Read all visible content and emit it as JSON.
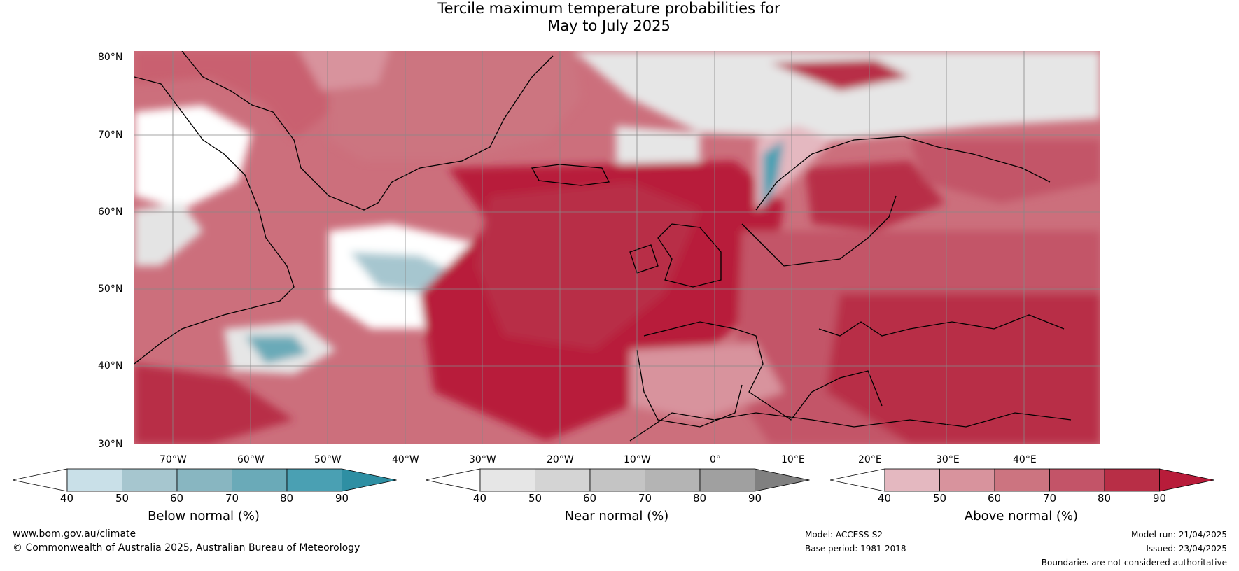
{
  "title_line1": "Tercile maximum temperature probabilities for",
  "title_line2": "May to July 2025",
  "lat_labels": [
    "80°N",
    "70°N",
    "60°N",
    "50°N",
    "40°N",
    "30°N"
  ],
  "lon_labels": [
    "70°W",
    "60°W",
    "50°W",
    "40°W",
    "30°W",
    "20°W",
    "10°W",
    "0°",
    "10°E",
    "20°E",
    "30°E",
    "40°E"
  ],
  "colorbars": [
    {
      "label": "Below normal (%)",
      "ticks": [
        "40",
        "50",
        "60",
        "70",
        "80",
        "90"
      ],
      "colors": [
        "#ffffff",
        "#c9e0e8",
        "#a6c6cf",
        "#88b6c1",
        "#6aaab8",
        "#4aa0b3",
        "#2e8fa3"
      ]
    },
    {
      "label": "Near normal (%)",
      "ticks": [
        "40",
        "50",
        "60",
        "70",
        "80",
        "90"
      ],
      "colors": [
        "#ffffff",
        "#e6e6e6",
        "#d4d4d4",
        "#c4c4c4",
        "#b4b4b4",
        "#a0a0a0",
        "#808080"
      ]
    },
    {
      "label": "Above normal (%)",
      "ticks": [
        "40",
        "50",
        "60",
        "70",
        "80",
        "90"
      ],
      "colors": [
        "#ffffff",
        "#e4b8c0",
        "#d8939d",
        "#cc7480",
        "#c35468",
        "#b82e46",
        "#b81c3a"
      ]
    }
  ],
  "footer": {
    "website": "www.bom.gov.au/climate",
    "copyright": "© Commonwealth of Australia 2025, Australian Bureau of Meteorology",
    "model": "Model: ACCESS-S2",
    "base_period": "Base period: 1981-2018",
    "model_run": "Model run: 21/04/2025",
    "issued": "Issued: 23/04/2025",
    "disclaimer": "Boundaries are not considered authoritative"
  }
}
